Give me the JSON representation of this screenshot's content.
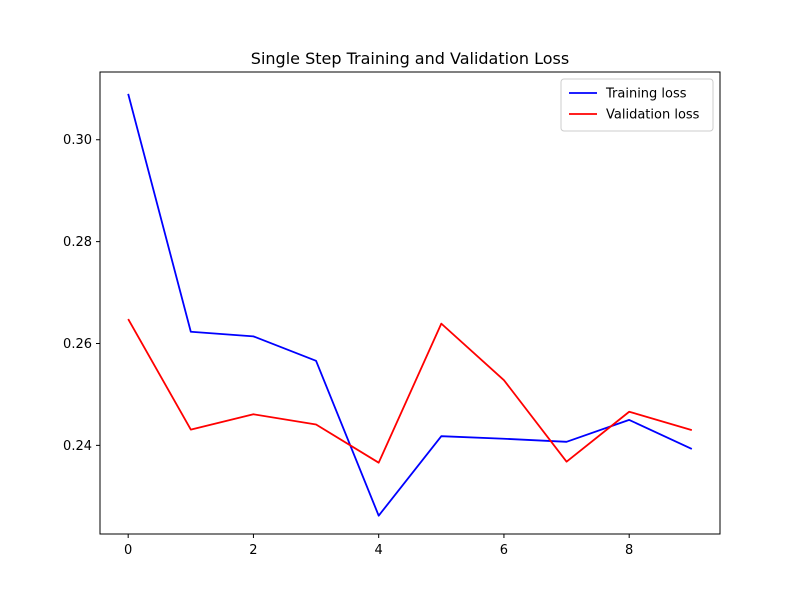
{
  "chart_data": {
    "type": "line",
    "title": "Single Step Training and Validation Loss",
    "xlabel": "",
    "ylabel": "",
    "x": [
      0,
      1,
      2,
      3,
      4,
      5,
      6,
      7,
      8,
      9
    ],
    "xlim": [
      -0.45,
      9.45
    ],
    "ylim": [
      0.2226,
      0.3133
    ],
    "xticks": [
      0,
      2,
      4,
      6,
      8
    ],
    "yticks": [
      0.24,
      0.26,
      0.28,
      0.3
    ],
    "ytick_labels": [
      "0.24",
      "0.26",
      "0.28",
      "0.30"
    ],
    "grid": false,
    "legend_position": "top-right",
    "series": [
      {
        "name": "Training loss",
        "color": "#0000ff",
        "values": [
          0.309,
          0.2623,
          0.2614,
          0.2566,
          0.2262,
          0.2418,
          0.2413,
          0.2407,
          0.245,
          0.2393
        ]
      },
      {
        "name": "Validation loss",
        "color": "#ff0000",
        "values": [
          0.2648,
          0.2431,
          0.2461,
          0.2441,
          0.2366,
          0.2639,
          0.2528,
          0.2368,
          0.2466,
          0.243
        ]
      }
    ]
  }
}
